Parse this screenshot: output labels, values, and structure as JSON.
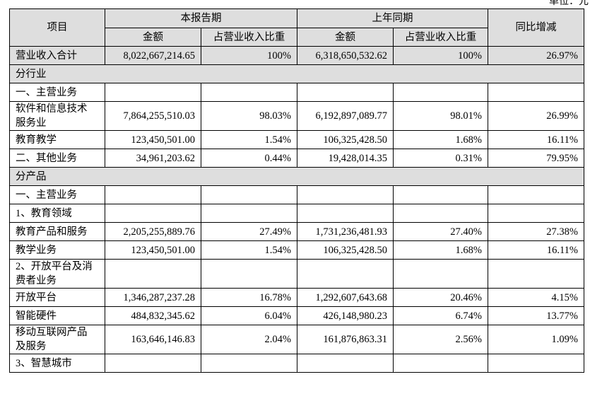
{
  "unit": "单位：元",
  "table": {
    "header": {
      "item": "项目",
      "current": "本报告期",
      "prior": "上年同期",
      "yoy": "同比增减",
      "subheaders": [
        "金额",
        "占营业收入比重",
        "金额",
        "占营业收入比重"
      ]
    },
    "total": [
      "营业收入合计",
      "8,022,667,214.65",
      "100%",
      "6,318,650,532.62",
      "100%",
      "26.97%"
    ],
    "sections": [
      {
        "title": "分行业",
        "rows": [
          [
            "一、主营业务"
          ],
          [
            "软件和信息技术服务业",
            "7,864,255,510.03",
            "98.03%",
            "6,192,897,089.77",
            "98.01%",
            "26.99%"
          ],
          [
            "教育教学",
            "123,450,501.00",
            "1.54%",
            "106,325,428.50",
            "1.68%",
            "16.11%"
          ],
          [
            "二、其他业务",
            "34,961,203.62",
            "0.44%",
            "19,428,014.35",
            "0.31%",
            "79.95%"
          ]
        ]
      },
      {
        "title": "分产品",
        "rows": [
          [
            "一、主营业务"
          ],
          [
            "1、教育领域"
          ],
          [
            "教育产品和服务",
            "2,205,255,889.76",
            "27.49%",
            "1,731,236,481.93",
            "27.40%",
            "27.38%"
          ],
          [
            "教学业务",
            "123,450,501.00",
            "1.54%",
            "106,325,428.50",
            "1.68%",
            "16.11%"
          ],
          [
            "2、开放平台及消费者业务"
          ],
          [
            "开放平台",
            "1,346,287,237.28",
            "16.78%",
            "1,292,607,643.68",
            "20.46%",
            "4.15%"
          ],
          [
            "智能硬件",
            "484,832,345.62",
            "6.04%",
            "426,148,980.23",
            "6.74%",
            "13.77%"
          ],
          [
            "移动互联网产品及服务",
            "163,646,146.83",
            "2.04%",
            "161,876,863.31",
            "2.56%",
            "1.09%"
          ],
          [
            "3、智慧城市"
          ]
        ]
      }
    ]
  }
}
